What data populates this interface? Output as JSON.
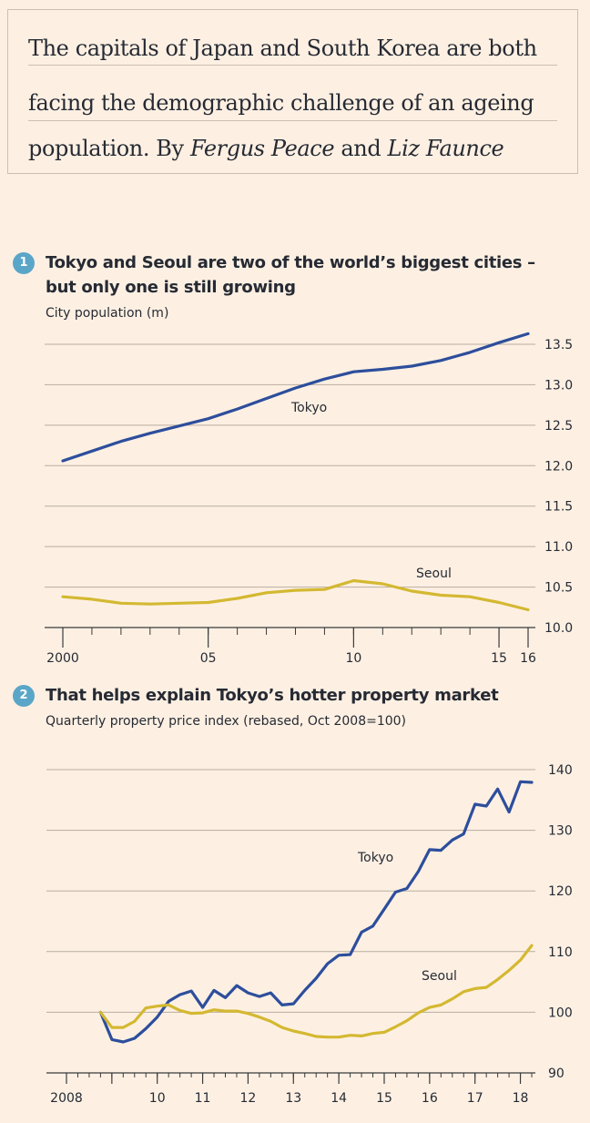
{
  "intro": {
    "line1": "The capitals of Japan and South Korea are both",
    "line2": "facing the demographic challenge of an ageing",
    "line3_a": "population. By ",
    "line3_author1": "Fergus Peace",
    "line3_b": " and ",
    "line3_author2": "Liz Faunce"
  },
  "colors": {
    "tokyo": "#2d4e9c",
    "seoul": "#d4b831",
    "badge": "#5aa6c8"
  },
  "chart_data": [
    {
      "type": "line",
      "number": "1",
      "title_line1": "Tokyo and Seoul are two of the world’s biggest cities –",
      "title_line2": "but only one is still growing",
      "subtitle": "City population (m)",
      "xlim": [
        2000,
        2016
      ],
      "ylim": [
        10.0,
        13.5
      ],
      "x_tick_values": [
        2000,
        2005,
        2010,
        2015,
        2016
      ],
      "x_tick_labels": [
        "2000",
        "05",
        "10",
        "15",
        "16"
      ],
      "y_ticks": [
        10.0,
        10.5,
        11.0,
        11.5,
        12.0,
        12.5,
        13.0,
        13.5
      ],
      "y_tick_labels": [
        "10.0",
        "10.5",
        "11.0",
        "11.5",
        "12.0",
        "12.5",
        "13.0",
        "13.5"
      ],
      "series": [
        {
          "name": "Tokyo",
          "x": [
            2000,
            2001,
            2002,
            2003,
            2004,
            2005,
            2006,
            2007,
            2008,
            2009,
            2010,
            2011,
            2012,
            2013,
            2014,
            2015,
            2016
          ],
          "values": [
            12.06,
            12.18,
            12.3,
            12.4,
            12.49,
            12.58,
            12.7,
            12.83,
            12.96,
            13.07,
            13.16,
            13.19,
            13.23,
            13.3,
            13.4,
            13.52,
            13.63
          ]
        },
        {
          "name": "Seoul",
          "x": [
            2000,
            2001,
            2002,
            2003,
            2004,
            2005,
            2006,
            2007,
            2008,
            2009,
            2010,
            2011,
            2012,
            2013,
            2014,
            2015,
            2016
          ],
          "values": [
            10.38,
            10.35,
            10.3,
            10.29,
            10.3,
            10.31,
            10.36,
            10.43,
            10.46,
            10.47,
            10.58,
            10.54,
            10.45,
            10.4,
            10.38,
            10.31,
            10.22
          ]
        }
      ]
    },
    {
      "type": "line",
      "number": "2",
      "title_line1": "That helps explain Tokyo’s hotter property market",
      "subtitle": "Quarterly property price index (rebased, Oct 2008=100)",
      "xlim": [
        2008.0,
        2018.35
      ],
      "ylim": [
        90,
        140
      ],
      "x_tick_values": [
        2008,
        2009,
        2010,
        2011,
        2012,
        2013,
        2014,
        2015,
        2016,
        2017,
        2018
      ],
      "x_tick_labels": [
        "2008",
        "",
        "10",
        "11",
        "12",
        "13",
        "14",
        "15",
        "16",
        "17",
        "18"
      ],
      "y_ticks": [
        90,
        100,
        110,
        120,
        130,
        140
      ],
      "y_tick_labels": [
        "90",
        "100",
        "110",
        "120",
        "130",
        "140"
      ],
      "series": [
        {
          "name": "Tokyo",
          "x": [
            2008.75,
            2009.0,
            2009.25,
            2009.5,
            2009.75,
            2010.0,
            2010.25,
            2010.5,
            2010.75,
            2011.0,
            2011.25,
            2011.5,
            2011.75,
            2012.0,
            2012.25,
            2012.5,
            2012.75,
            2013.0,
            2013.25,
            2013.5,
            2013.75,
            2014.0,
            2014.25,
            2014.5,
            2014.75,
            2015.0,
            2015.25,
            2015.5,
            2015.75,
            2016.0,
            2016.25,
            2016.5,
            2016.75,
            2017.0,
            2017.25,
            2017.5,
            2017.75,
            2018.0,
            2018.25
          ],
          "values": [
            100.0,
            95.5,
            95.1,
            95.7,
            97.3,
            99.2,
            101.8,
            102.9,
            103.5,
            100.8,
            103.6,
            102.4,
            104.4,
            103.2,
            102.6,
            103.2,
            101.2,
            101.4,
            103.6,
            105.6,
            108.0,
            109.4,
            109.5,
            113.2,
            114.2,
            117.0,
            119.8,
            120.4,
            123.2,
            126.8,
            126.7,
            128.4,
            129.4,
            134.3,
            134.0,
            136.8,
            133.0,
            138.0,
            137.9
          ]
        },
        {
          "name": "Seoul",
          "x": [
            2008.75,
            2009.0,
            2009.25,
            2009.5,
            2009.75,
            2010.0,
            2010.25,
            2010.5,
            2010.75,
            2011.0,
            2011.25,
            2011.5,
            2011.75,
            2012.0,
            2012.25,
            2012.5,
            2012.75,
            2013.0,
            2013.25,
            2013.5,
            2013.75,
            2014.0,
            2014.25,
            2014.5,
            2014.75,
            2015.0,
            2015.25,
            2015.5,
            2015.75,
            2016.0,
            2016.25,
            2016.5,
            2016.75,
            2017.0,
            2017.25,
            2017.5,
            2017.75,
            2018.0,
            2018.25
          ],
          "values": [
            100.0,
            97.5,
            97.5,
            98.5,
            100.7,
            101.0,
            101.2,
            100.3,
            99.8,
            99.9,
            100.4,
            100.2,
            100.2,
            99.8,
            99.2,
            98.5,
            97.5,
            96.9,
            96.5,
            96.0,
            95.9,
            95.9,
            96.2,
            96.1,
            96.5,
            96.7,
            97.6,
            98.6,
            99.9,
            100.8,
            101.2,
            102.2,
            103.4,
            103.9,
            104.1,
            105.4,
            106.9,
            108.6,
            111.0
          ]
        }
      ]
    }
  ]
}
